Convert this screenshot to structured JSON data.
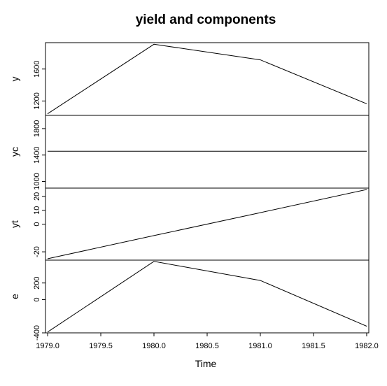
{
  "chart_data": {
    "type": "line",
    "title": "yield and components",
    "xlabel": "Time",
    "x": [
      1979,
      1980,
      1981,
      1982
    ],
    "xlim": [
      1978.98,
      1982.02
    ],
    "xticks": [
      "1979.0",
      "1979.5",
      "1980.0",
      "1980.5",
      "1981.0",
      "1981.5",
      "1982.0"
    ],
    "xtick_values": [
      1979.0,
      1979.5,
      1980.0,
      1980.5,
      1981.0,
      1981.5,
      1982.0
    ],
    "panels": [
      {
        "ylabel": "y",
        "values": [
          1040,
          1910,
          1715,
          1165
        ],
        "ylim": [
          1020,
          1930
        ],
        "yticks": [
          "1200",
          "1600"
        ],
        "ytick_values": [
          1200,
          1600
        ]
      },
      {
        "ylabel": "yc",
        "values": [
          1457,
          1457,
          1457,
          1457
        ],
        "ylim": [
          900,
          2000
        ],
        "yticks": [
          "1000",
          "1400",
          "1800"
        ],
        "ytick_values": [
          1000,
          1400,
          1800
        ]
      },
      {
        "ylabel": "yt",
        "values": [
          -25,
          -8.3,
          8.3,
          25
        ],
        "ylim": [
          -26,
          26
        ],
        "yticks": [
          "-20",
          "0",
          "10",
          "20"
        ],
        "ytick_values": [
          -20,
          0,
          10,
          20
        ]
      },
      {
        "ylabel": "e",
        "values": [
          -390,
          460,
          230,
          -320
        ],
        "ylim": [
          -400,
          475
        ],
        "yticks": [
          "-400",
          "0",
          "200"
        ],
        "ytick_values": [
          -400,
          0,
          200
        ]
      }
    ]
  }
}
